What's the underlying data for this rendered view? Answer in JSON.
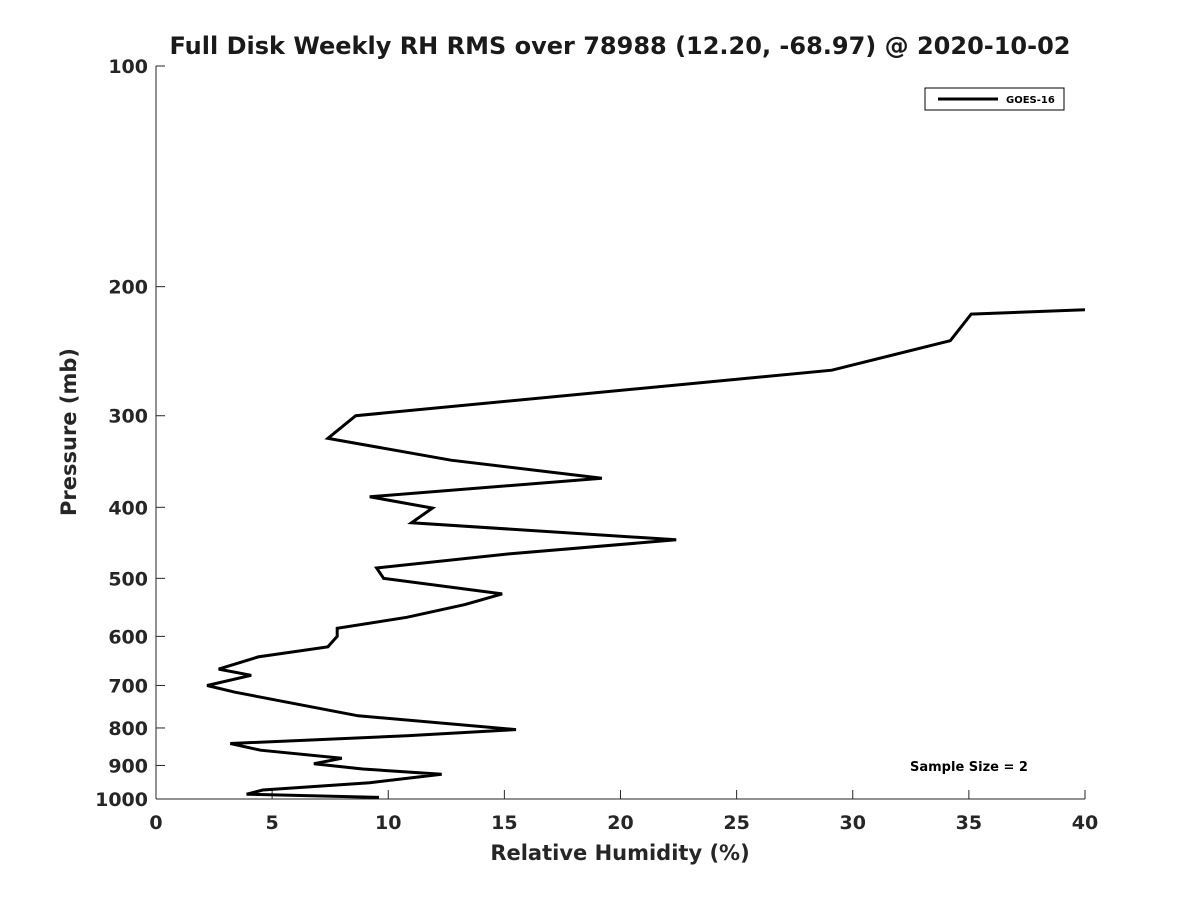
{
  "chart_data": {
    "type": "line",
    "title": "Full Disk Weekly RH RMS over 78988 (12.20, -68.97) @ 2020-10-02",
    "xlabel": "Relative Humidity (%)",
    "ylabel": "Pressure (mb)",
    "xlim": [
      0,
      40
    ],
    "ylim": [
      100,
      1000
    ],
    "yscale": "log",
    "y_reversed": true,
    "xticks": [
      0,
      5,
      10,
      15,
      20,
      25,
      30,
      35,
      40
    ],
    "yticks": [
      100,
      200,
      300,
      400,
      500,
      600,
      700,
      800,
      900,
      1000
    ],
    "grid": false,
    "legend_position": "top-right",
    "annotation": "Sample Size = 2",
    "series": [
      {
        "name": "GOES-16",
        "color": "#000000",
        "points": [
          {
            "x": 40.0,
            "p": 215
          },
          {
            "x": 35.1,
            "p": 218
          },
          {
            "x": 34.2,
            "p": 237
          },
          {
            "x": 29.1,
            "p": 260
          },
          {
            "x": 8.6,
            "p": 300
          },
          {
            "x": 7.4,
            "p": 322
          },
          {
            "x": 12.7,
            "p": 345
          },
          {
            "x": 19.2,
            "p": 365
          },
          {
            "x": 9.2,
            "p": 387
          },
          {
            "x": 11.9,
            "p": 401
          },
          {
            "x": 11.0,
            "p": 420
          },
          {
            "x": 22.4,
            "p": 443
          },
          {
            "x": 15.2,
            "p": 463
          },
          {
            "x": 9.5,
            "p": 484
          },
          {
            "x": 9.8,
            "p": 500
          },
          {
            "x": 14.9,
            "p": 525
          },
          {
            "x": 13.3,
            "p": 543
          },
          {
            "x": 10.8,
            "p": 565
          },
          {
            "x": 7.8,
            "p": 585
          },
          {
            "x": 7.8,
            "p": 600
          },
          {
            "x": 7.7,
            "p": 605
          },
          {
            "x": 7.4,
            "p": 620
          },
          {
            "x": 4.4,
            "p": 640
          },
          {
            "x": 2.7,
            "p": 665
          },
          {
            "x": 4.1,
            "p": 678
          },
          {
            "x": 2.2,
            "p": 700
          },
          {
            "x": 3.4,
            "p": 715
          },
          {
            "x": 8.7,
            "p": 770
          },
          {
            "x": 15.5,
            "p": 804
          },
          {
            "x": 10.8,
            "p": 820
          },
          {
            "x": 3.2,
            "p": 840
          },
          {
            "x": 4.5,
            "p": 858
          },
          {
            "x": 8.0,
            "p": 880
          },
          {
            "x": 6.8,
            "p": 895
          },
          {
            "x": 8.9,
            "p": 910
          },
          {
            "x": 12.3,
            "p": 925
          },
          {
            "x": 9.2,
            "p": 950
          },
          {
            "x": 4.6,
            "p": 972
          },
          {
            "x": 3.9,
            "p": 985
          },
          {
            "x": 9.6,
            "p": 995
          }
        ]
      }
    ]
  }
}
